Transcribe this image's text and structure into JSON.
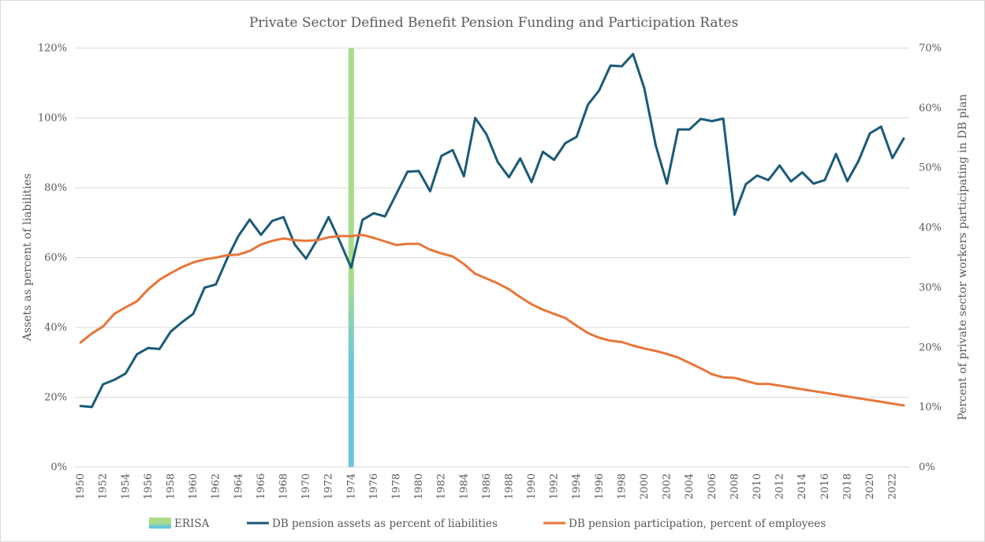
{
  "chart_data": {
    "type": "line",
    "title": "Private Sector Defined Benefit Pension Funding and Participation Rates",
    "x": [
      1950,
      1951,
      1952,
      1953,
      1954,
      1955,
      1956,
      1957,
      1958,
      1959,
      1960,
      1961,
      1962,
      1963,
      1964,
      1965,
      1966,
      1967,
      1968,
      1969,
      1970,
      1971,
      1972,
      1973,
      1974,
      1975,
      1976,
      1977,
      1978,
      1979,
      1980,
      1981,
      1982,
      1983,
      1984,
      1985,
      1986,
      1987,
      1988,
      1989,
      1990,
      1991,
      1992,
      1993,
      1994,
      1995,
      1996,
      1997,
      1998,
      1999,
      2000,
      2001,
      2002,
      2003,
      2004,
      2005,
      2006,
      2007,
      2008,
      2009,
      2010,
      2011,
      2012,
      2013,
      2014,
      2015,
      2016,
      2017,
      2018,
      2019,
      2020,
      2021,
      2022,
      2023
    ],
    "x_tick_labels": [
      "1950",
      "1952",
      "1954",
      "1956",
      "1958",
      "1960",
      "1962",
      "1964",
      "1966",
      "1968",
      "1970",
      "1972",
      "1974",
      "1976",
      "1978",
      "1980",
      "1982",
      "1984",
      "1986",
      "1988",
      "1990",
      "1992",
      "1994",
      "1996",
      "1998",
      "2000",
      "2002",
      "2004",
      "2006",
      "2008",
      "2010",
      "2012",
      "2014",
      "2016",
      "2018",
      "2020",
      "2022"
    ],
    "y_left": {
      "label": "Assets as percent of liabilities",
      "range": [
        0,
        120
      ],
      "ticks": [
        "0%",
        "20%",
        "40%",
        "60%",
        "80%",
        "100%",
        "120%"
      ]
    },
    "y_right": {
      "label": "Percent of private sector workers participating in DB plan",
      "range": [
        0,
        70
      ],
      "ticks": [
        "0%",
        "10%",
        "20%",
        "30%",
        "40%",
        "50%",
        "60%",
        "70%"
      ]
    },
    "grid": true,
    "legend_position": "bottom",
    "annotation_bar": {
      "name": "ERISA",
      "x": 1974,
      "color_top": "#a8dc8c",
      "color_bottom": "#6bc7d9"
    },
    "series": [
      {
        "name": "DB pension assets as percent of liabilities",
        "axis": "left",
        "color": "#1b5a78",
        "values": [
          17.5,
          17.2,
          23.7,
          25,
          26.8,
          32.3,
          34.1,
          33.8,
          38.8,
          41.5,
          43.9,
          51.4,
          52.3,
          59.7,
          66.2,
          70.9,
          66.5,
          70.5,
          71.6,
          63.7,
          59.7,
          65.2,
          71.6,
          64.6,
          57.1,
          70.8,
          72.7,
          71.8,
          78.2,
          84.6,
          84.8,
          79,
          89.1,
          90.8,
          83.3,
          100,
          95.3,
          87.4,
          83,
          88.4,
          81.6,
          90.3,
          88,
          92.8,
          94.6,
          103.8,
          107.9,
          115,
          114.8,
          118.3,
          108.5,
          92.3,
          81.2,
          96.7,
          96.7,
          99.7,
          99.1,
          99.8,
          72.3,
          81,
          83.5,
          82.2,
          86.4,
          81.8,
          84.4,
          81.2,
          82.2,
          89.7,
          81.9,
          87.7,
          95.6,
          97.5,
          88.5,
          94.1
        ]
      },
      {
        "name": "DB pension participation, percent of employees",
        "axis": "right",
        "color": "#e8763a",
        "values": [
          20.8,
          22.3,
          23.5,
          25.6,
          26.7,
          27.7,
          29.7,
          31.3,
          32.4,
          33.4,
          34.2,
          34.7,
          35,
          35.4,
          35.5,
          36.1,
          37.2,
          37.8,
          38.2,
          37.9,
          37.8,
          37.9,
          38.4,
          38.6,
          38.6,
          38.8,
          38.3,
          37.7,
          37.1,
          37.3,
          37.3,
          36.3,
          35.7,
          35.2,
          33.9,
          32.3,
          31.5,
          30.7,
          29.7,
          28.4,
          27.2,
          26.3,
          25.6,
          24.9,
          23.6,
          22.4,
          21.6,
          21.1,
          20.9,
          20.3,
          19.8,
          19.4,
          18.9,
          18.3,
          17.4,
          16.5,
          15.5,
          15,
          14.9,
          14.4,
          13.9,
          13.9,
          13.6,
          13.3,
          13,
          12.7,
          12.4,
          12.1,
          11.8,
          11.5,
          11.2,
          10.9,
          10.6,
          10.3
        ]
      }
    ]
  }
}
